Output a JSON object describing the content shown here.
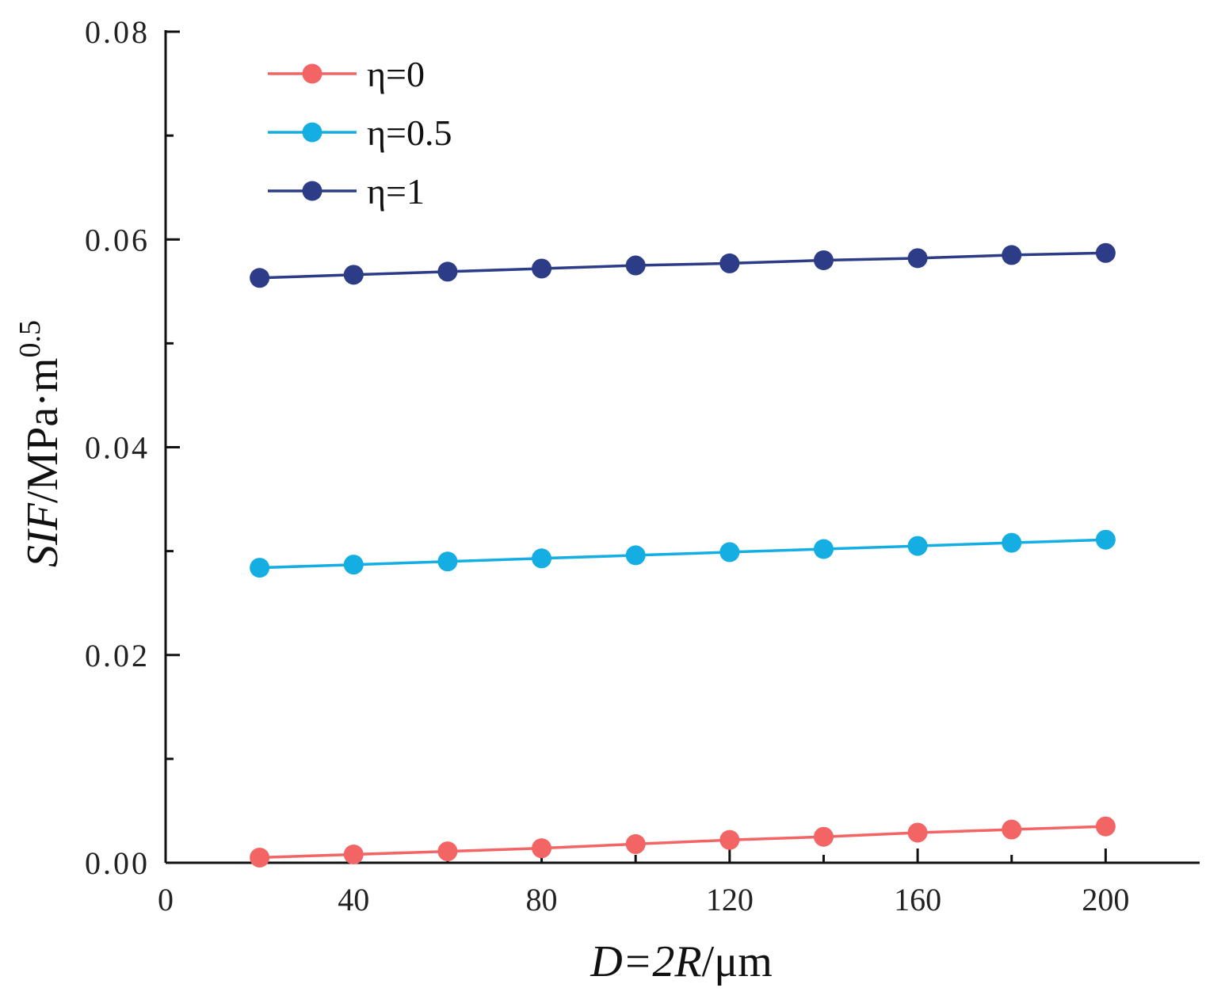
{
  "chart_data": {
    "type": "line",
    "xlabel": {
      "italic": "D=2R",
      "rest": "/μm"
    },
    "ylabel": {
      "italic": "SIF",
      "rest": "/MPa·m",
      "superscript": "0.5"
    },
    "xlim": [
      0,
      220
    ],
    "ylim": [
      0,
      0.08
    ],
    "x_ticks": [
      "0",
      "40",
      "80",
      "120",
      "160",
      "200"
    ],
    "x_tick_values": [
      0,
      40,
      80,
      120,
      160,
      200
    ],
    "x_minor_tick_values": [
      20,
      60,
      100,
      140,
      180
    ],
    "y_ticks": [
      "0.00",
      "0.02",
      "0.04",
      "0.06",
      "0.08"
    ],
    "y_tick_values": [
      0,
      0.02,
      0.04,
      0.06,
      0.08
    ],
    "y_minor_tick_values": [
      0.01,
      0.03,
      0.05,
      0.07
    ],
    "grid": false,
    "legend_position": "top-left",
    "x": [
      20,
      40,
      60,
      80,
      100,
      120,
      140,
      160,
      180,
      200
    ],
    "series": [
      {
        "name": "η=0",
        "color": "#f36464",
        "values": [
          0.0005,
          0.0008,
          0.0011,
          0.0014,
          0.0018,
          0.0022,
          0.0025,
          0.0029,
          0.0032,
          0.0035
        ]
      },
      {
        "name": "η=0.5",
        "color": "#15aee3",
        "values": [
          0.0284,
          0.0287,
          0.029,
          0.0293,
          0.0296,
          0.0299,
          0.0302,
          0.0305,
          0.0308,
          0.0311
        ]
      },
      {
        "name": "η=1",
        "color": "#2c3c86",
        "values": [
          0.0563,
          0.0566,
          0.0569,
          0.0572,
          0.0575,
          0.0577,
          0.058,
          0.0582,
          0.0585,
          0.0587
        ]
      }
    ]
  }
}
